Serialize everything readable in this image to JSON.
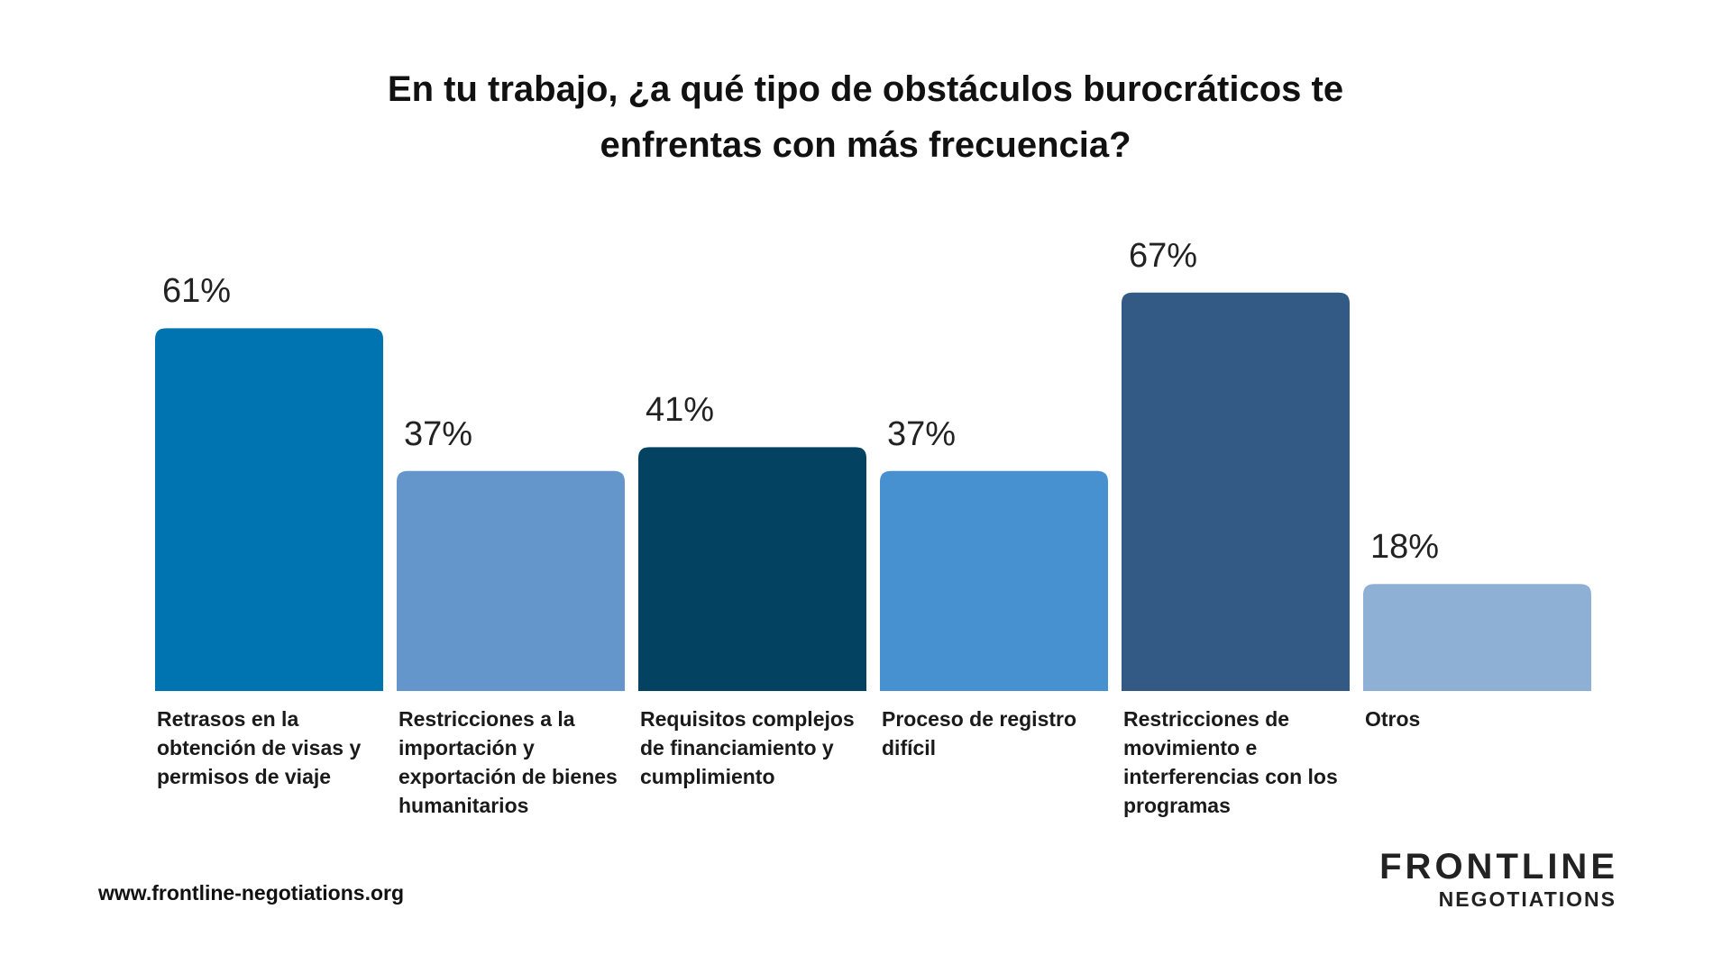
{
  "chart_data": {
    "type": "bar",
    "title": "En tu trabajo, ¿a qué tipo de obstáculos burocráticos te enfrentas con más frecuencia?",
    "categories": [
      "Retrasos en la obtención de visas y permisos de viaje",
      "Restricciones a la importación y exportación de bienes humanitarios",
      "Requisitos complejos de financiamiento y cumplimiento",
      "Proceso de registro difícil",
      "Restricciones de movimiento e interferencias con los programas",
      "Otros"
    ],
    "values": [
      61,
      37,
      41,
      37,
      67,
      18
    ],
    "value_labels": [
      "61%",
      "37%",
      "41%",
      "37%",
      "67%",
      "18%"
    ],
    "colors": [
      "#0073b1",
      "#6496cb",
      "#034260",
      "#4891d0",
      "#335a85",
      "#8eb0d4"
    ]
  },
  "footer": {
    "url": "www.frontline-negotiations.org",
    "logo": {
      "line1": "FRONTLINE",
      "line2": "NEGOTIATIONS"
    }
  }
}
